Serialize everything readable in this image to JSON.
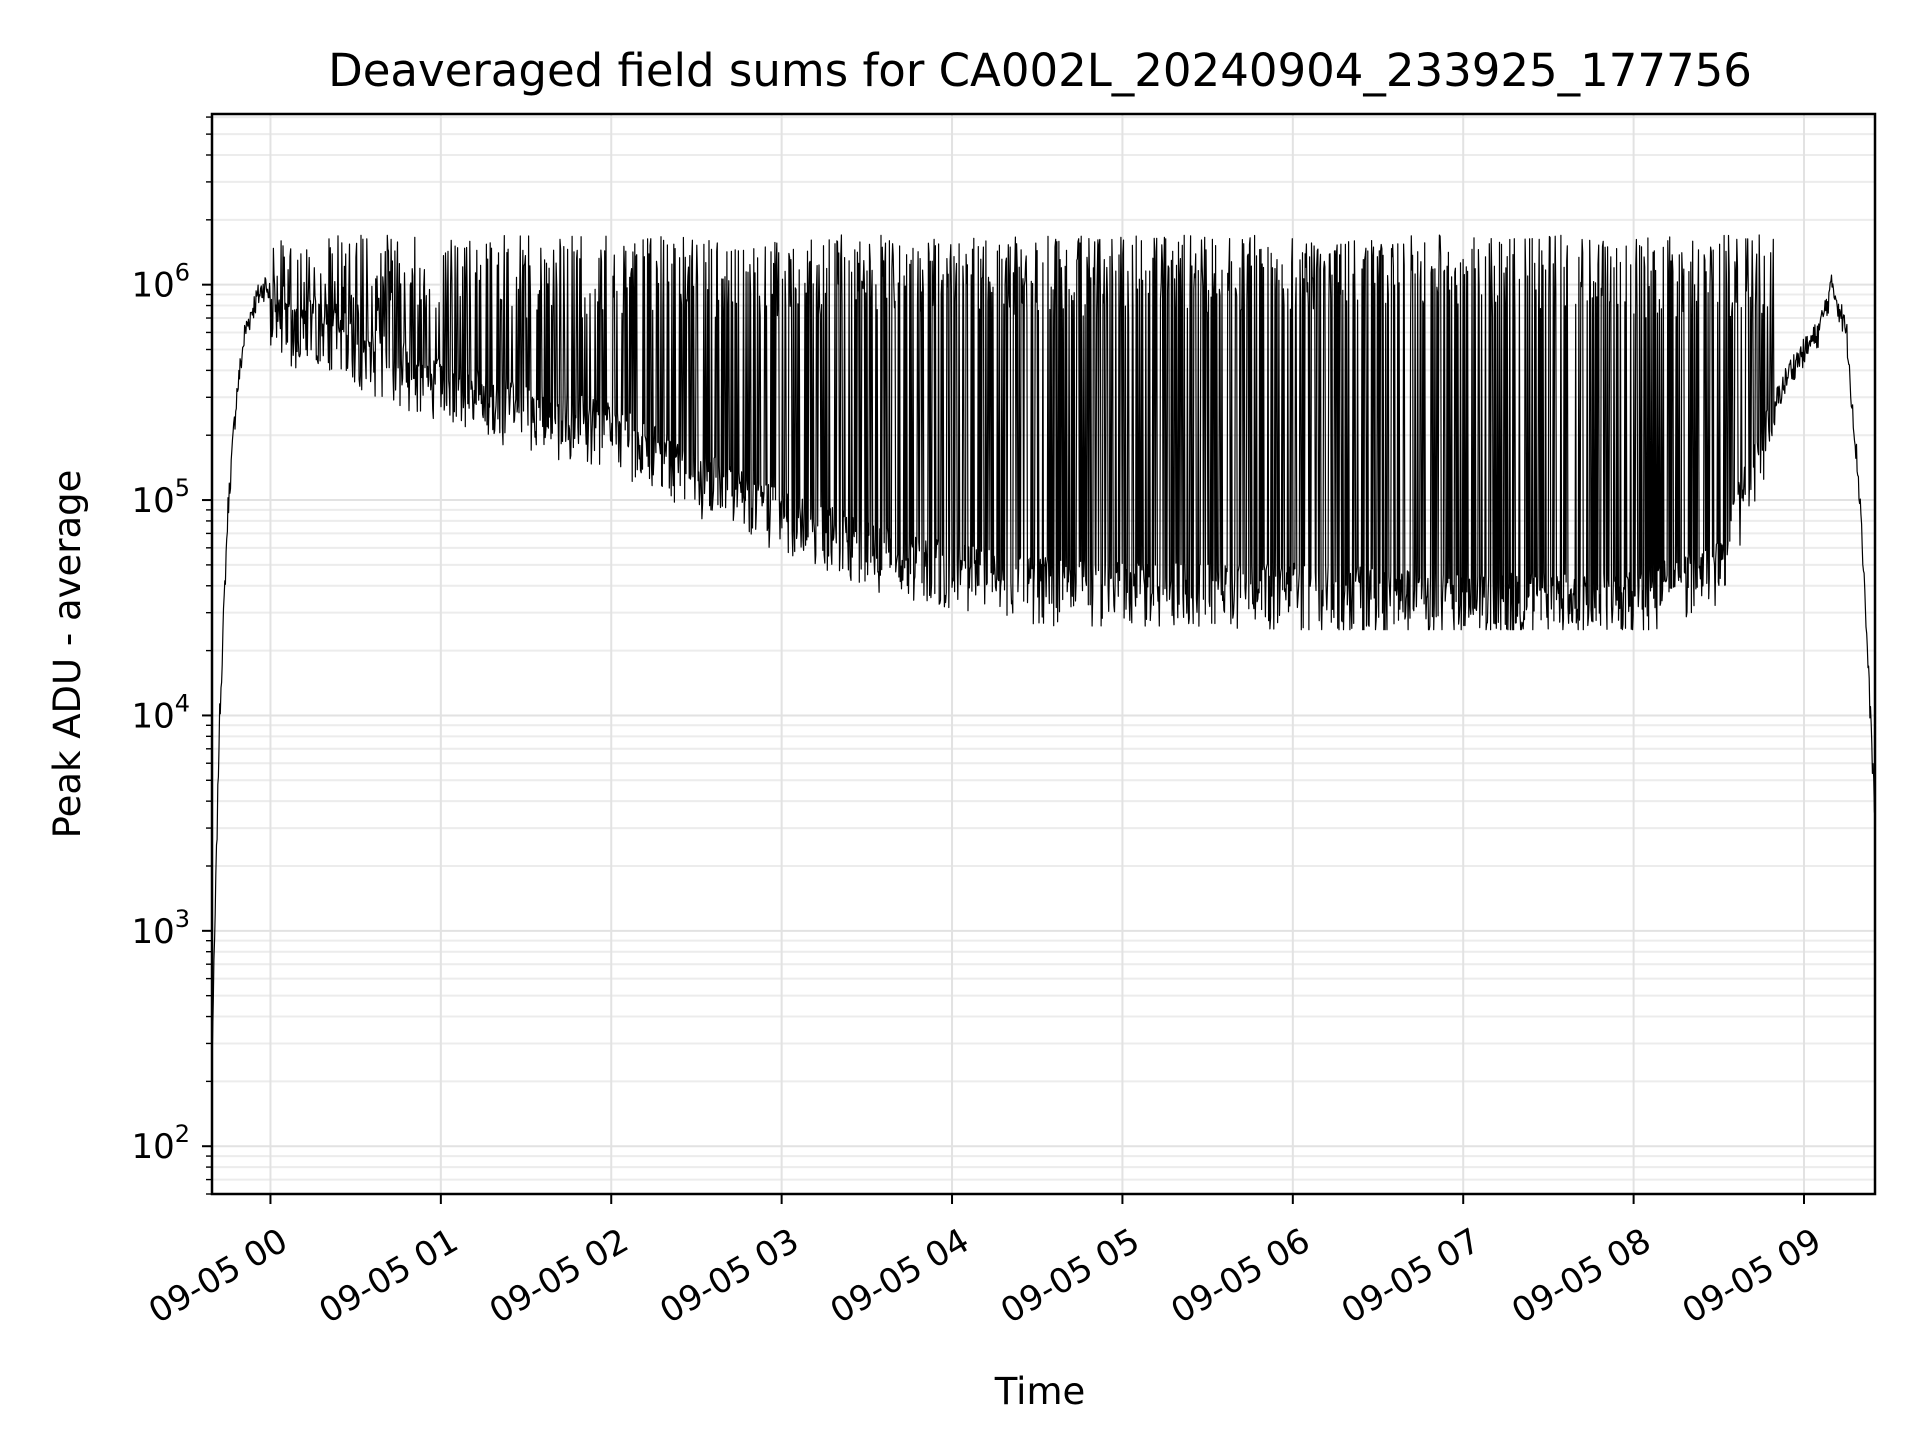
{
  "chart_data": {
    "type": "line",
    "title": "Deaveraged field sums for CA002L_20240904_233925_177756",
    "xlabel": "Time",
    "ylabel": "Peak ADU - average",
    "yscale": "log",
    "ylim": [
      60,
      6200000
    ],
    "xlim": [
      "2024-09-04 23:39:25",
      "2024-09-05 09:25:00"
    ],
    "x_ticks": [
      "09-05 00",
      "09-05 01",
      "09-05 02",
      "09-05 03",
      "09-05 04",
      "09-05 05",
      "09-05 06",
      "09-05 07",
      "09-05 08",
      "09-05 09"
    ],
    "y_ticks": [
      {
        "value": 100,
        "base": "10",
        "exp": "2"
      },
      {
        "value": 1000,
        "base": "10",
        "exp": "3"
      },
      {
        "value": 10000,
        "base": "10",
        "exp": "4"
      },
      {
        "value": 100000,
        "base": "10",
        "exp": "5"
      },
      {
        "value": 1000000,
        "base": "10",
        "exp": "6"
      }
    ],
    "grid": true,
    "grid_minor": true,
    "line_color": "#000000",
    "series": [
      {
        "note_points": "approximate envelope samples read from the plot",
        "x": [
          "2024-09-04 23:39:25",
          "2024-09-04 23:42",
          "2024-09-04 23:45",
          "2024-09-04 23:48",
          "2024-09-04 23:51",
          "2024-09-04 23:54",
          "2024-09-04 23:56",
          "2024-09-04 23:58",
          "2024-09-05 00:05",
          "2024-09-05 00:15",
          "2024-09-05 00:30",
          "2024-09-05 00:45",
          "2024-09-05 01:00",
          "2024-09-05 01:30",
          "2024-09-05 02:00",
          "2024-09-05 02:30",
          "2024-09-05 03:00",
          "2024-09-05 03:30",
          "2024-09-05 04:00",
          "2024-09-05 04:30",
          "2024-09-05 05:00",
          "2024-09-05 05:30",
          "2024-09-05 06:00",
          "2024-09-05 06:30",
          "2024-09-05 07:00",
          "2024-09-05 07:30",
          "2024-09-05 08:00",
          "2024-09-05 08:30",
          "2024-09-05 08:45",
          "2024-09-05 08:55",
          "2024-09-05 09:05",
          "2024-09-05 09:10",
          "2024-09-05 09:15",
          "2024-09-05 09:20",
          "2024-09-05 09:25"
        ],
        "y": [
          250,
          9000,
          90000,
          300000,
          600000,
          800000,
          900000,
          1000000,
          700000,
          800000,
          600000,
          500000,
          400000,
          300000,
          250000,
          150000,
          100000,
          70000,
          55000,
          48000,
          45000,
          45000,
          45000,
          42000,
          40000,
          40000,
          40000,
          60000,
          200000,
          400000,
          600000,
          1000000,
          600000,
          90000,
          3500
        ]
      }
    ],
    "spikes": {
      "x_range": [
        "2024-09-05 00:00",
        "2024-09-05 08:50"
      ],
      "floor_range": [
        25000,
        120000
      ],
      "peak_range": [
        700000,
        1700000
      ]
    }
  }
}
